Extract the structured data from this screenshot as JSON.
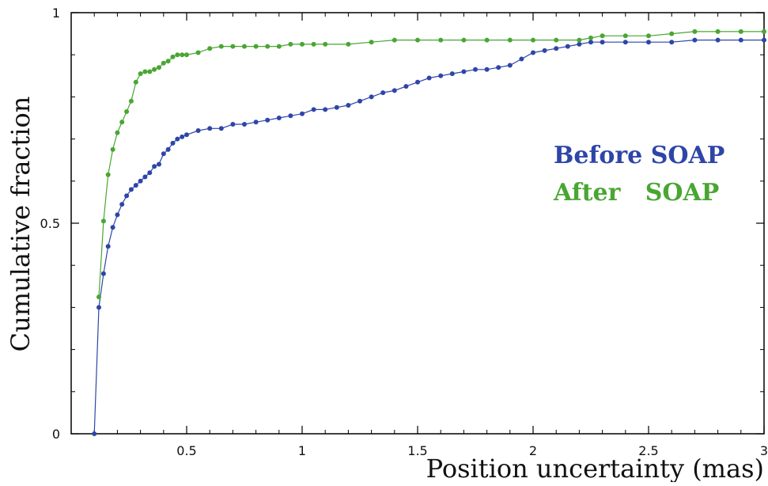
{
  "chart_data": {
    "type": "line",
    "title": "",
    "xlabel": "Position uncertainty (mas)",
    "ylabel": "Cumulative fraction",
    "xlim": [
      0.0,
      3.0
    ],
    "ylim": [
      0.0,
      1.0
    ],
    "x_ticks": [
      0.5,
      1,
      1.5,
      2,
      2.5,
      3
    ],
    "x_tick_labels": [
      "0.5",
      "1",
      "1.5",
      "2",
      "2.5",
      "3"
    ],
    "y_ticks": [
      0,
      0.5,
      1
    ],
    "y_tick_labels": [
      "0",
      "0.5",
      "1"
    ],
    "grid": false,
    "legend_position": "right",
    "series": [
      {
        "name": "Before SOAP",
        "legend_label": "Before SOAP",
        "color": "#2e45a8",
        "points": [
          [
            0.1,
            0.0
          ],
          [
            0.12,
            0.3
          ],
          [
            0.14,
            0.38
          ],
          [
            0.16,
            0.445
          ],
          [
            0.18,
            0.49
          ],
          [
            0.2,
            0.52
          ],
          [
            0.22,
            0.545
          ],
          [
            0.24,
            0.565
          ],
          [
            0.26,
            0.58
          ],
          [
            0.28,
            0.59
          ],
          [
            0.3,
            0.6
          ],
          [
            0.32,
            0.61
          ],
          [
            0.34,
            0.62
          ],
          [
            0.36,
            0.635
          ],
          [
            0.38,
            0.64
          ],
          [
            0.4,
            0.665
          ],
          [
            0.42,
            0.675
          ],
          [
            0.44,
            0.69
          ],
          [
            0.46,
            0.7
          ],
          [
            0.48,
            0.705
          ],
          [
            0.5,
            0.71
          ],
          [
            0.55,
            0.72
          ],
          [
            0.6,
            0.725
          ],
          [
            0.65,
            0.725
          ],
          [
            0.7,
            0.735
          ],
          [
            0.75,
            0.735
          ],
          [
            0.8,
            0.74
          ],
          [
            0.85,
            0.745
          ],
          [
            0.9,
            0.75
          ],
          [
            0.95,
            0.755
          ],
          [
            1.0,
            0.76
          ],
          [
            1.05,
            0.77
          ],
          [
            1.1,
            0.77
          ],
          [
            1.15,
            0.775
          ],
          [
            1.2,
            0.78
          ],
          [
            1.25,
            0.79
          ],
          [
            1.3,
            0.8
          ],
          [
            1.35,
            0.81
          ],
          [
            1.4,
            0.815
          ],
          [
            1.45,
            0.825
          ],
          [
            1.5,
            0.835
          ],
          [
            1.55,
            0.845
          ],
          [
            1.6,
            0.85
          ],
          [
            1.65,
            0.855
          ],
          [
            1.7,
            0.86
          ],
          [
            1.75,
            0.865
          ],
          [
            1.8,
            0.865
          ],
          [
            1.85,
            0.87
          ],
          [
            1.9,
            0.875
          ],
          [
            1.95,
            0.89
          ],
          [
            2.0,
            0.905
          ],
          [
            2.05,
            0.91
          ],
          [
            2.1,
            0.915
          ],
          [
            2.15,
            0.92
          ],
          [
            2.2,
            0.925
          ],
          [
            2.25,
            0.93
          ],
          [
            2.3,
            0.93
          ],
          [
            2.4,
            0.93
          ],
          [
            2.5,
            0.93
          ],
          [
            2.6,
            0.93
          ],
          [
            2.7,
            0.935
          ],
          [
            2.8,
            0.935
          ],
          [
            2.9,
            0.935
          ],
          [
            3.0,
            0.935
          ]
        ]
      },
      {
        "name": "After SOAP",
        "legend_label": "After   SOAP",
        "color": "#49a632",
        "points": [
          [
            0.12,
            0.325
          ],
          [
            0.14,
            0.505
          ],
          [
            0.16,
            0.615
          ],
          [
            0.18,
            0.675
          ],
          [
            0.2,
            0.715
          ],
          [
            0.22,
            0.74
          ],
          [
            0.24,
            0.765
          ],
          [
            0.26,
            0.79
          ],
          [
            0.28,
            0.835
          ],
          [
            0.3,
            0.855
          ],
          [
            0.32,
            0.86
          ],
          [
            0.34,
            0.86
          ],
          [
            0.36,
            0.865
          ],
          [
            0.38,
            0.87
          ],
          [
            0.4,
            0.88
          ],
          [
            0.42,
            0.885
          ],
          [
            0.44,
            0.895
          ],
          [
            0.46,
            0.9
          ],
          [
            0.48,
            0.9
          ],
          [
            0.5,
            0.9
          ],
          [
            0.55,
            0.905
          ],
          [
            0.6,
            0.915
          ],
          [
            0.65,
            0.92
          ],
          [
            0.7,
            0.92
          ],
          [
            0.75,
            0.92
          ],
          [
            0.8,
            0.92
          ],
          [
            0.85,
            0.92
          ],
          [
            0.9,
            0.92
          ],
          [
            0.95,
            0.925
          ],
          [
            1.0,
            0.925
          ],
          [
            1.05,
            0.925
          ],
          [
            1.1,
            0.925
          ],
          [
            1.2,
            0.925
          ],
          [
            1.3,
            0.93
          ],
          [
            1.4,
            0.935
          ],
          [
            1.5,
            0.935
          ],
          [
            1.6,
            0.935
          ],
          [
            1.7,
            0.935
          ],
          [
            1.8,
            0.935
          ],
          [
            1.9,
            0.935
          ],
          [
            2.0,
            0.935
          ],
          [
            2.1,
            0.935
          ],
          [
            2.2,
            0.935
          ],
          [
            2.25,
            0.94
          ],
          [
            2.3,
            0.945
          ],
          [
            2.4,
            0.945
          ],
          [
            2.5,
            0.945
          ],
          [
            2.6,
            0.95
          ],
          [
            2.7,
            0.955
          ],
          [
            2.8,
            0.955
          ],
          [
            2.9,
            0.955
          ],
          [
            3.0,
            0.955
          ]
        ]
      }
    ]
  }
}
